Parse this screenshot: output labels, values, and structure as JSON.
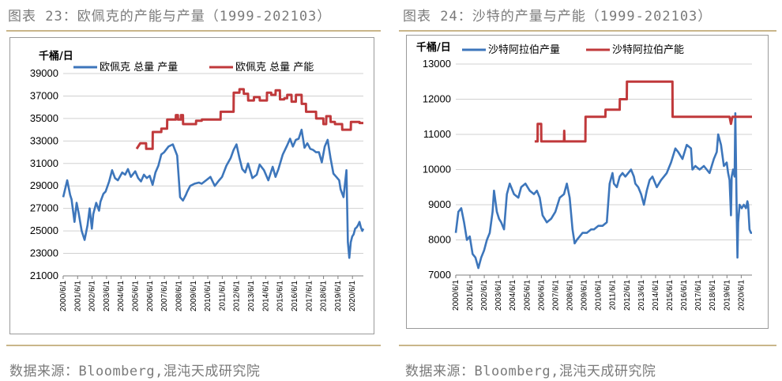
{
  "left": {
    "fig_title": "图表 23：欧佩克的产能与产量（1999-202103）",
    "source": "数据来源：Bloomberg,混沌天成研究院",
    "chart_data": {
      "type": "line",
      "ylabel": "千桶/日",
      "ylim": [
        21000,
        39000
      ],
      "yticks": [
        "39000",
        "37000",
        "35000",
        "33000",
        "31000",
        "29000",
        "27000",
        "25000",
        "23000",
        "21000"
      ],
      "x_range": [
        2000.42,
        2021.17
      ],
      "xticks": [
        "2000/6/1",
        "2001/6/1",
        "2002/6/1",
        "2003/6/1",
        "2004/6/1",
        "2005/6/1",
        "2006/6/1",
        "2007/6/1",
        "2008/6/1",
        "2009/6/1",
        "2010/6/1",
        "2011/6/1",
        "2012/6/1",
        "2013/6/1",
        "2014/6/1",
        "2015/6/1",
        "2016/6/1",
        "2017/6/1",
        "2018/6/1",
        "2019/6/1",
        "2020/6/1"
      ],
      "series": [
        {
          "name": "欧佩克 总量 产量",
          "color": "#3d76bb",
          "x": [
            2000.42,
            2000.7,
            2000.9,
            2001.0,
            2001.2,
            2001.35,
            2001.5,
            2001.7,
            2001.9,
            2002.1,
            2002.25,
            2002.4,
            2002.5,
            2002.7,
            2002.9,
            2003.0,
            2003.2,
            2003.35,
            2003.6,
            2003.8,
            2004.0,
            2004.2,
            2004.5,
            2004.7,
            2004.9,
            2005.1,
            2005.4,
            2005.6,
            2005.8,
            2006.0,
            2006.2,
            2006.4,
            2006.6,
            2006.8,
            2007.0,
            2007.2,
            2007.4,
            2007.7,
            2008.0,
            2008.3,
            2008.5,
            2008.7,
            2008.9,
            2009.0,
            2009.2,
            2009.5,
            2009.8,
            2010.0,
            2010.3,
            2010.6,
            2010.9,
            2011.2,
            2011.4,
            2011.7,
            2012.0,
            2012.2,
            2012.4,
            2012.6,
            2012.8,
            2013.0,
            2013.2,
            2013.5,
            2013.8,
            2014.0,
            2014.3,
            2014.6,
            2014.9,
            2015.1,
            2015.3,
            2015.6,
            2015.9,
            2016.1,
            2016.3,
            2016.5,
            2016.7,
            2016.9,
            2017.1,
            2017.3,
            2017.5,
            2017.7,
            2017.9,
            2018.1,
            2018.3,
            2018.5,
            2018.7,
            2018.9,
            2019.1,
            2019.3,
            2019.5,
            2019.6,
            2019.8,
            2020.0,
            2020.1,
            2020.2,
            2020.3,
            2020.4,
            2020.5,
            2020.6,
            2020.7,
            2020.8,
            2020.9,
            2021.0,
            2021.1,
            2021.17
          ],
          "values": [
            28000,
            29500,
            28200,
            27800,
            25800,
            27500,
            26500,
            25000,
            24200,
            25500,
            27000,
            25200,
            26500,
            27500,
            26800,
            27600,
            28300,
            28500,
            29400,
            30400,
            29700,
            29500,
            30200,
            30000,
            30500,
            29800,
            30300,
            29700,
            29400,
            30000,
            29700,
            29900,
            29100,
            30200,
            30800,
            31800,
            32000,
            32500,
            32700,
            31700,
            28000,
            27700,
            28200,
            28500,
            29000,
            29200,
            29300,
            29200,
            29500,
            29800,
            29000,
            29500,
            29800,
            30800,
            31500,
            32200,
            32700,
            31500,
            30500,
            30200,
            31000,
            29700,
            30000,
            30900,
            30400,
            29500,
            30700,
            29800,
            30500,
            31800,
            32600,
            33200,
            32500,
            33100,
            33200,
            34000,
            32400,
            32800,
            32300,
            32200,
            32000,
            32000,
            31100,
            32500,
            33100,
            31500,
            30100,
            29800,
            29500,
            28700,
            28000,
            30400,
            24000,
            22600,
            24000,
            24500,
            24700,
            25200,
            25300,
            25500,
            25800,
            25300,
            25000,
            25200
          ]
        },
        {
          "name": "欧佩克 总量 产能",
          "color": "#c0393b",
          "x": [
            2005.5,
            2005.75,
            2005.76,
            2006.15,
            2006.16,
            2006.6,
            2006.61,
            2007.2,
            2007.21,
            2007.6,
            2007.61,
            2008.2,
            2008.21,
            2008.35,
            2008.36,
            2008.55,
            2008.56,
            2008.7,
            2008.71,
            2009.6,
            2009.61,
            2010.0,
            2010.01,
            2011.3,
            2011.31,
            2012.2,
            2012.21,
            2012.6,
            2012.61,
            2012.9,
            2012.91,
            2013.2,
            2013.21,
            2013.6,
            2013.61,
            2014.0,
            2014.01,
            2014.5,
            2014.51,
            2014.8,
            2014.81,
            2015.1,
            2015.11,
            2015.4,
            2015.41,
            2015.7,
            2015.71,
            2015.9,
            2015.91,
            2016.2,
            2016.21,
            2016.5,
            2016.51,
            2016.9,
            2016.91,
            2017.2,
            2017.21,
            2017.9,
            2017.91,
            2018.4,
            2018.41,
            2018.6,
            2018.61,
            2018.9,
            2018.91,
            2019.2,
            2019.21,
            2019.7,
            2019.71,
            2020.3,
            2020.31,
            2020.9,
            2020.91,
            2021.17
          ],
          "values": [
            32300,
            32800,
            32800,
            32800,
            32300,
            32300,
            33800,
            33800,
            34100,
            34100,
            34900,
            34900,
            35300,
            35300,
            34900,
            34900,
            35300,
            35300,
            34500,
            34500,
            34800,
            34800,
            34900,
            34900,
            35600,
            35600,
            37300,
            37300,
            37600,
            37600,
            37200,
            37200,
            36600,
            36600,
            36900,
            36900,
            36600,
            36600,
            37300,
            37300,
            37100,
            37100,
            37500,
            37500,
            36700,
            36700,
            36800,
            36800,
            37100,
            37100,
            36500,
            36500,
            37100,
            37100,
            36300,
            36300,
            35600,
            35600,
            35000,
            35000,
            34500,
            34500,
            35200,
            35200,
            34700,
            34700,
            34500,
            34500,
            34000,
            34000,
            34700,
            34700,
            34600,
            34600
          ]
        }
      ]
    }
  },
  "right": {
    "fig_title": "图表 24：沙特的产量与产能（1999-202103）",
    "source": "数据来源：Bloomberg,混沌天成研究院",
    "chart_data": {
      "type": "line",
      "ylabel": "千桶/日",
      "ylim": [
        7000,
        13000
      ],
      "yticks": [
        "13000",
        "12000",
        "11000",
        "10000",
        "9000",
        "8000",
        "7000"
      ],
      "x_range": [
        2000.42,
        2021.17
      ],
      "xticks": [
        "2000/6/1",
        "2001/6/1",
        "2002/6/1",
        "2003/6/1",
        "2004/6/1",
        "2005/6/1",
        "2006/6/1",
        "2007/6/1",
        "2008/6/1",
        "2009/6/1",
        "2010/6/1",
        "2011/6/1",
        "2012/6/1",
        "2013/6/1",
        "2014/6/1",
        "2015/6/1",
        "2016/6/1",
        "2017/6/1",
        "2018/6/1",
        "2019/6/1",
        "2020/6/1"
      ],
      "series": [
        {
          "name": "沙特阿拉伯产量",
          "color": "#3d76bb",
          "x": [
            2000.42,
            2000.6,
            2000.8,
            2001.0,
            2001.2,
            2001.4,
            2001.6,
            2001.8,
            2002.0,
            2002.2,
            2002.4,
            2002.6,
            2002.8,
            2003.0,
            2003.1,
            2003.3,
            2003.45,
            2003.6,
            2003.8,
            2004.0,
            2004.2,
            2004.5,
            2004.8,
            2005.0,
            2005.3,
            2005.6,
            2005.9,
            2006.1,
            2006.3,
            2006.5,
            2006.8,
            2007.1,
            2007.4,
            2007.7,
            2008.0,
            2008.2,
            2008.4,
            2008.6,
            2008.75,
            2008.9,
            2009.1,
            2009.3,
            2009.6,
            2009.9,
            2010.1,
            2010.4,
            2010.7,
            2011.0,
            2011.2,
            2011.4,
            2011.5,
            2011.7,
            2011.9,
            2012.1,
            2012.3,
            2012.5,
            2012.7,
            2012.9,
            2013.0,
            2013.2,
            2013.4,
            2013.6,
            2013.8,
            2014.0,
            2014.2,
            2014.5,
            2014.8,
            2015.0,
            2015.2,
            2015.5,
            2015.8,
            2016.0,
            2016.3,
            2016.6,
            2016.9,
            2017.0,
            2017.2,
            2017.5,
            2017.8,
            2018.0,
            2018.2,
            2018.5,
            2018.7,
            2018.8,
            2019.0,
            2019.2,
            2019.4,
            2019.5,
            2019.6,
            2019.7,
            2019.75,
            2019.85,
            2019.95,
            2020.0,
            2020.1,
            2020.15,
            2020.2,
            2020.3,
            2020.45,
            2020.6,
            2020.75,
            2020.85,
            2020.9,
            2021.0,
            2021.1,
            2021.17
          ],
          "values": [
            8200,
            8800,
            8900,
            8500,
            8000,
            8100,
            7600,
            7500,
            7200,
            7500,
            7700,
            8000,
            8200,
            8800,
            9400,
            8800,
            8600,
            8500,
            8300,
            9300,
            9600,
            9300,
            9200,
            9500,
            9600,
            9400,
            9300,
            9400,
            9200,
            8700,
            8500,
            8600,
            8800,
            9200,
            9300,
            9600,
            9200,
            8300,
            7900,
            8000,
            8100,
            8200,
            8200,
            8300,
            8300,
            8400,
            8400,
            8500,
            9600,
            9900,
            9600,
            9500,
            9800,
            9900,
            9800,
            9900,
            10000,
            9800,
            9600,
            9500,
            9300,
            9000,
            9400,
            9700,
            9800,
            9500,
            9700,
            9800,
            9900,
            10200,
            10600,
            10500,
            10300,
            10700,
            10600,
            10000,
            10100,
            10000,
            10100,
            10000,
            9900,
            10300,
            10500,
            11000,
            10700,
            10100,
            10200,
            9900,
            9700,
            8700,
            9800,
            10000,
            9800,
            11600,
            8700,
            7500,
            8500,
            9000,
            8900,
            9000,
            8900,
            9100,
            9000,
            8300,
            8200,
            8200
          ]
        },
        {
          "name": "沙特阿拉伯产能",
          "color": "#c0393b",
          "x": [
            2005.95,
            2006.15,
            2006.16,
            2006.4,
            2006.41,
            2008.0,
            2008.02,
            2008.04,
            2008.06,
            2009.5,
            2009.51,
            2010.9,
            2010.91,
            2011.9,
            2011.91,
            2012.4,
            2012.41,
            2015.6,
            2015.61,
            2019.6,
            2019.7,
            2019.8,
            2019.9,
            2021.17
          ],
          "values": [
            10800,
            10800,
            11300,
            11300,
            10800,
            10800,
            11100,
            10800,
            10800,
            10800,
            11500,
            11500,
            11700,
            11700,
            12000,
            12000,
            12500,
            12500,
            11500,
            11500,
            11300,
            11500,
            11500,
            11500
          ]
        }
      ]
    }
  }
}
